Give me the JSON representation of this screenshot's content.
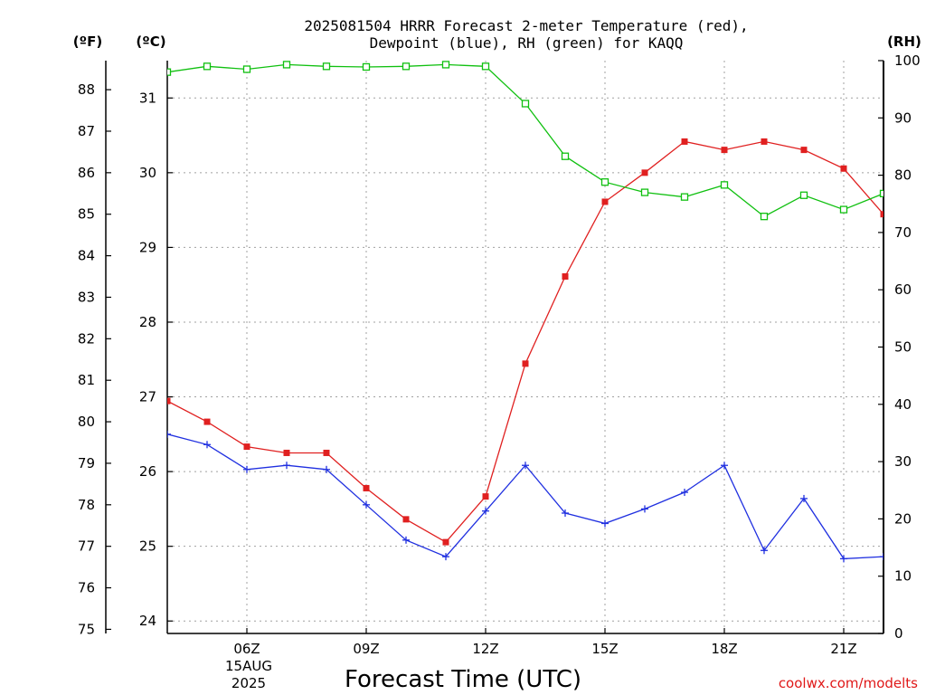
{
  "chart_data": {
    "type": "line",
    "title_line1": "2025081504 HRRR Forecast 2-meter Temperature (red),",
    "title_line2": "Dewpoint (blue), RH (green) for KAQQ",
    "left_unit_f": "(ºF)",
    "left_unit_c": "(ºC)",
    "right_unit": "(RH)",
    "xlabel": "Forecast Time (UTC)",
    "date_line1": "15AUG",
    "date_line2": "2025",
    "watermark": "coolwx.com/modelts",
    "x_hours": [
      4,
      5,
      6,
      7,
      8,
      9,
      10,
      11,
      12,
      13,
      14,
      15,
      16,
      17,
      18,
      19,
      20,
      21,
      22
    ],
    "x_ticks": [
      {
        "hour": 6,
        "label": "06Z"
      },
      {
        "hour": 9,
        "label": "09Z"
      },
      {
        "hour": 12,
        "label": "12Z"
      },
      {
        "hour": 15,
        "label": "15Z"
      },
      {
        "hour": 18,
        "label": "18Z"
      },
      {
        "hour": 21,
        "label": "21Z"
      }
    ],
    "xlim": [
      4,
      22
    ],
    "ylim_f": [
      74.9,
      88.7
    ],
    "yticks_f": [
      75,
      76,
      77,
      78,
      79,
      80,
      81,
      82,
      83,
      84,
      85,
      86,
      87,
      88
    ],
    "yticks_c": [
      24,
      25,
      26,
      27,
      28,
      29,
      30,
      31
    ],
    "ylim_rh": [
      0,
      100
    ],
    "yticks_rh": [
      0,
      10,
      20,
      30,
      40,
      50,
      60,
      70,
      80,
      90,
      100
    ],
    "series": [
      {
        "name": "Temperature",
        "axis": "F",
        "color": "#e02020",
        "marker": "filled-square",
        "values": [
          80.5,
          80.0,
          79.4,
          79.25,
          79.25,
          78.4,
          77.65,
          77.1,
          78.2,
          81.4,
          83.5,
          85.3,
          86.0,
          86.75,
          86.55,
          86.75,
          86.55,
          86.1,
          85.0
        ]
      },
      {
        "name": "Dewpoint",
        "axis": "F",
        "color": "#2030e0",
        "marker": "plus",
        "values": [
          79.7,
          79.45,
          78.85,
          78.95,
          78.85,
          78.0,
          77.15,
          76.75,
          77.85,
          78.95,
          77.8,
          77.55,
          77.9,
          78.3,
          78.95,
          76.9,
          78.15,
          76.7,
          76.75
        ]
      },
      {
        "name": "RH",
        "axis": "RH",
        "color": "#10c010",
        "marker": "open-square",
        "values": [
          98.0,
          99.0,
          98.5,
          99.3,
          99.0,
          98.9,
          99.0,
          99.3,
          99.0,
          92.5,
          83.3,
          78.8,
          77.0,
          76.2,
          78.3,
          72.8,
          76.5,
          74.0,
          76.8
        ]
      }
    ]
  }
}
